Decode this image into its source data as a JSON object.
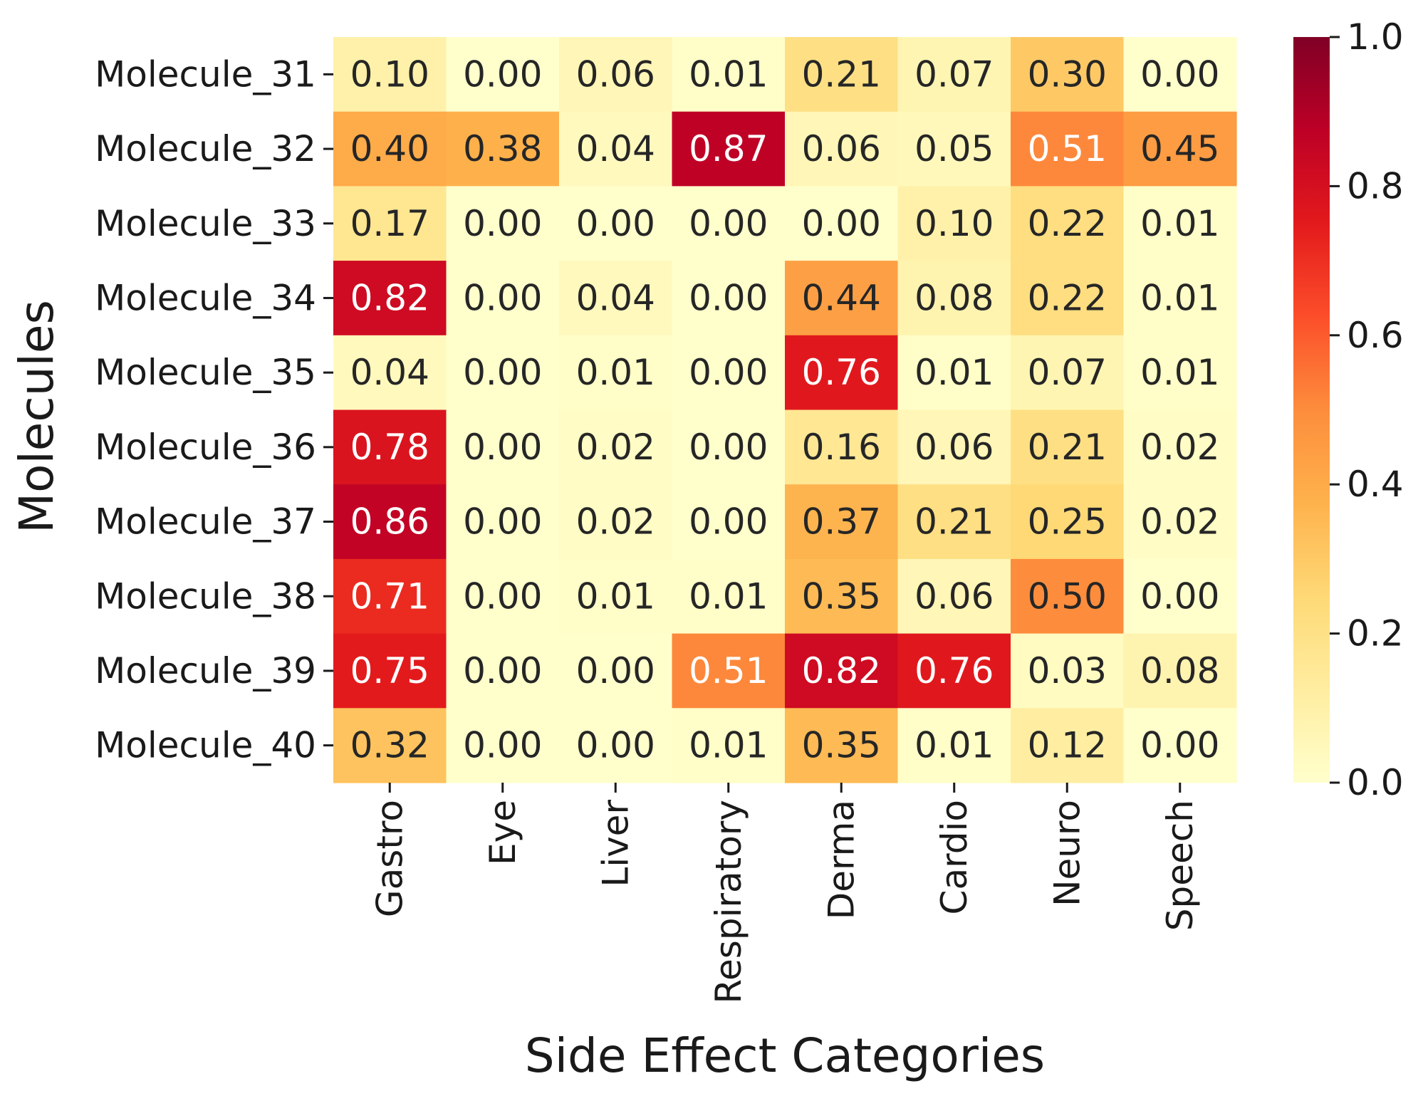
{
  "chart_data": {
    "type": "heatmap",
    "title": "",
    "xlabel": "Side Effect Categories",
    "ylabel": "Molecules",
    "x_categories": [
      "Gastro",
      "Eye",
      "Liver",
      "Respiratory",
      "Derma",
      "Cardio",
      "Neuro",
      "Speech"
    ],
    "y_categories": [
      "Molecule_31",
      "Molecule_32",
      "Molecule_33",
      "Molecule_34",
      "Molecule_35",
      "Molecule_36",
      "Molecule_37",
      "Molecule_38",
      "Molecule_39",
      "Molecule_40"
    ],
    "values": [
      [
        0.1,
        0.0,
        0.06,
        0.01,
        0.21,
        0.07,
        0.3,
        0.0
      ],
      [
        0.4,
        0.38,
        0.04,
        0.87,
        0.06,
        0.05,
        0.51,
        0.45
      ],
      [
        0.17,
        0.0,
        0.0,
        0.0,
        0.0,
        0.1,
        0.22,
        0.01
      ],
      [
        0.82,
        0.0,
        0.04,
        0.0,
        0.44,
        0.08,
        0.22,
        0.01
      ],
      [
        0.04,
        0.0,
        0.01,
        0.0,
        0.76,
        0.01,
        0.07,
        0.01
      ],
      [
        0.78,
        0.0,
        0.02,
        0.0,
        0.16,
        0.06,
        0.21,
        0.02
      ],
      [
        0.86,
        0.0,
        0.02,
        0.0,
        0.37,
        0.21,
        0.25,
        0.02
      ],
      [
        0.71,
        0.0,
        0.01,
        0.01,
        0.35,
        0.06,
        0.5,
        0.0
      ],
      [
        0.75,
        0.0,
        0.0,
        0.51,
        0.82,
        0.76,
        0.03,
        0.08
      ],
      [
        0.32,
        0.0,
        0.0,
        0.01,
        0.35,
        0.01,
        0.12,
        0.0
      ]
    ],
    "value_format": "0.00",
    "colormap": "YlOrRd",
    "colormap_stops": [
      "#ffffcc",
      "#ffeda0",
      "#fed976",
      "#feb24c",
      "#fd8d3c",
      "#fc4e2a",
      "#e31a1c",
      "#bd0026",
      "#800026"
    ],
    "colorbar": {
      "min": 0.0,
      "max": 1.0,
      "ticks": [
        0.0,
        0.2,
        0.4,
        0.6,
        0.8,
        1.0
      ],
      "tick_labels": [
        "0.0",
        "0.2",
        "0.4",
        "0.6",
        "0.8",
        "1.0"
      ]
    },
    "annotation_colors": {
      "dark": "#262626",
      "light": "#ffffff"
    },
    "annotation_light_threshold": 0.5
  }
}
